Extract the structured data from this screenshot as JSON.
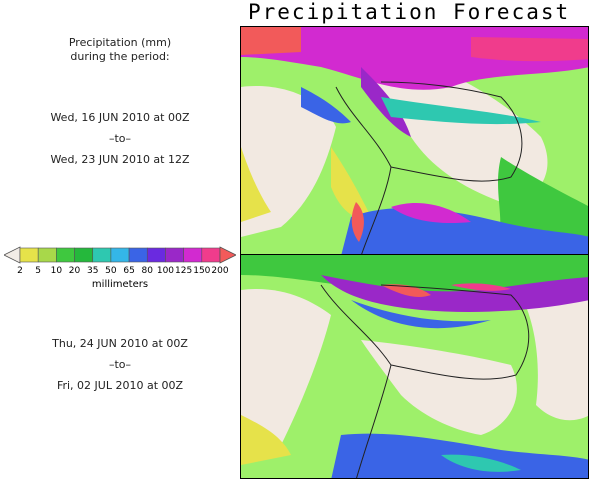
{
  "title": "Precipitation Forecast",
  "description": {
    "line1": "Precipitation (mm)",
    "line2": "during the period:"
  },
  "period1": {
    "start": "Wed, 16 JUN 2010 at 00Z",
    "sep": "–to–",
    "end": "Wed, 23 JUN 2010 at 12Z"
  },
  "period2": {
    "start": "Thu, 24 JUN 2010 at 00Z",
    "sep": "–to–",
    "end": "Fri, 02 JUL 2010 at 00Z"
  },
  "legend": {
    "units": "millimeters",
    "ticks": [
      "2",
      "5",
      "10",
      "20",
      "35",
      "50",
      "65",
      "80",
      "100",
      "125",
      "150",
      "200"
    ],
    "colors": [
      "#e6e24a",
      "#a8d84a",
      "#3fc83f",
      "#25b83c",
      "#2ec8b0",
      "#34b6e8",
      "#3a64e6",
      "#6a2ae0",
      "#9a28c8",
      "#d22ad0",
      "#f03c8c",
      "#f25a5a"
    ],
    "low_arrow_color": "#f2ece6",
    "high_arrow_color": "#f25a5a"
  },
  "map_colors": {
    "dry": "#f2e9e1",
    "ocean_wet": "#9ef06a",
    "light": "#e6e24a",
    "moderate": "#3fc83f",
    "heavy": "#2ec8b0",
    "very_heavy": "#3a64e6",
    "extreme": "#9a28c8",
    "max": "#f25a5a"
  }
}
